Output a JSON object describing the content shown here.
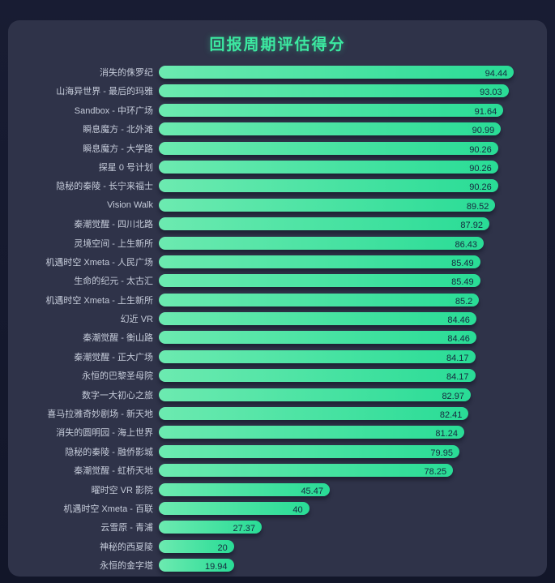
{
  "page": {
    "title": "回报周期评估得分"
  },
  "chart_data": {
    "type": "bar",
    "orientation": "horizontal",
    "title": "回报周期评估得分",
    "xlabel": "",
    "ylabel": "",
    "xlim": [
      0,
      100
    ],
    "grid": false,
    "legend_position": "none",
    "categories": [
      "消失的侏罗纪",
      "山海异世界 - 最后的玛雅",
      "Sandbox - 中环广场",
      "瞬息魔方 - 北外滩",
      "瞬息魔方 - 大学路",
      "探星 0 号计划",
      "隐秘的秦陵 - 长宁来福士",
      "Vision Walk",
      "秦潮觉醒 - 四川北路",
      "灵境空间 - 上生新所",
      "机遇时空 Xmeta - 人民广场",
      "生命的纪元 - 太古汇",
      "机遇时空 Xmeta - 上生新所",
      "幻近 VR",
      "秦潮觉醒 - 衡山路",
      "秦潮觉醒 - 正大广场",
      "永恒的巴黎圣母院",
      "数字一大初心之旅",
      "喜马拉雅奇妙剧场 - 新天地",
      "消失的圆明园 - 海上世界",
      "隐秘的秦陵 - 融侨影城",
      "秦潮觉醒 - 虹桥天地",
      "曜时空 VR 影院",
      "机遇时空 Xmeta - 百联",
      "云雪原 - 青浦",
      "神秘的西夏陵",
      "永恒的金字塔"
    ],
    "values": [
      94.44,
      93.03,
      91.64,
      90.99,
      90.26,
      90.26,
      90.26,
      89.52,
      87.92,
      86.43,
      85.49,
      85.49,
      85.2,
      84.46,
      84.46,
      84.17,
      84.17,
      82.97,
      82.41,
      81.24,
      79.95,
      78.25,
      45.47,
      40,
      27.37,
      20,
      19.94
    ],
    "value_labels": [
      "94.44",
      "93.03",
      "91.64",
      "90.99",
      "90.26",
      "90.26",
      "90.26",
      "89.52",
      "87.92",
      "86.43",
      "85.49",
      "85.49",
      "85.2",
      "84.46",
      "84.46",
      "84.17",
      "84.17",
      "82.97",
      "82.41",
      "81.24",
      "79.95",
      "78.25",
      "45.47",
      "40",
      "27.37",
      "20",
      "19.94"
    ],
    "colors": {
      "background_outer": "#141830",
      "panel": "#2f3349",
      "bar_gradient_start": "#6ceab0",
      "bar_gradient_end": "#29dc96",
      "value_text": "#16283e",
      "label_text": "#c6ccda",
      "title_text": "#3ce9a1"
    }
  }
}
